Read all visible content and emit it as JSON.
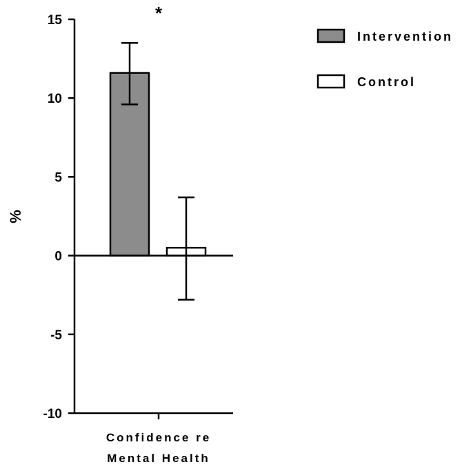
{
  "chart_data": {
    "type": "bar",
    "categories": [
      "Confidence re Mental Health"
    ],
    "category_label_lines": [
      "Confidence re",
      "Mental Health"
    ],
    "series": [
      {
        "name": "Intervention",
        "values": [
          11.6
        ],
        "error_low": [
          9.6
        ],
        "error_high": [
          13.5
        ],
        "fill": "#8c8c8c"
      },
      {
        "name": "Control",
        "values": [
          0.5
        ],
        "error_low": [
          -2.8
        ],
        "error_high": [
          3.7
        ],
        "fill": "#ffffff"
      }
    ],
    "ylabel": "%",
    "ylim": [
      -10,
      15
    ],
    "yticks": [
      15,
      10,
      5,
      0,
      -5,
      -10
    ],
    "significance_marker": "*",
    "legend_position": "top-right",
    "grid": false
  }
}
